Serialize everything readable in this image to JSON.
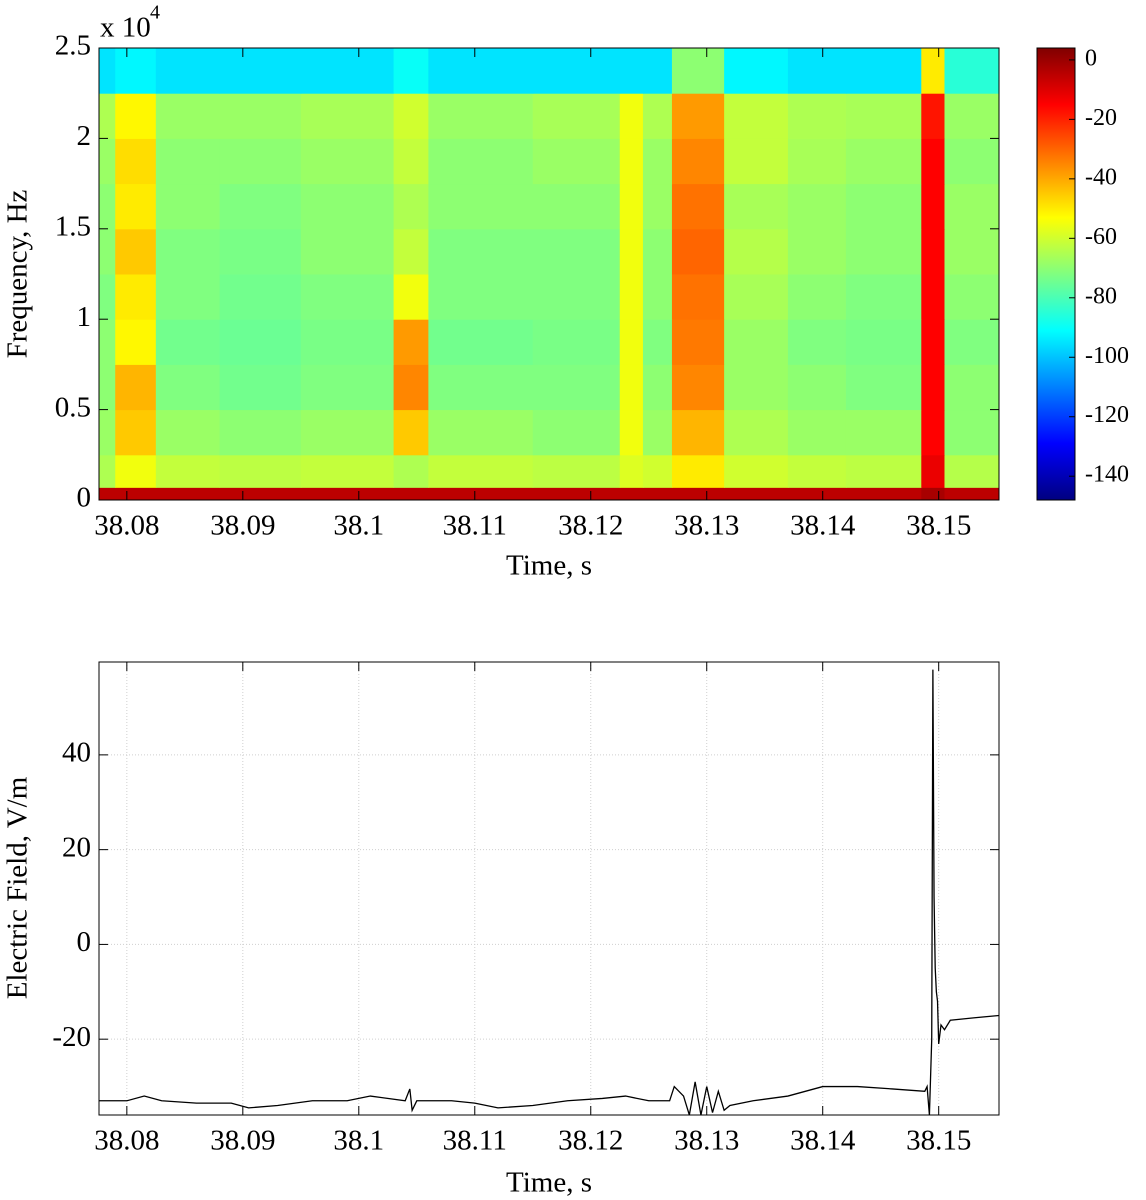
{
  "chart_data": [
    {
      "type": "spectrogram",
      "xlabel": "Time, s",
      "ylabel": "Frequency, Hz",
      "y_multiplier": {
        "base": "x 10",
        "exponent": "4"
      },
      "xbins": [
        38.0776,
        38.079,
        38.0825,
        38.088,
        38.095,
        38.103,
        38.106,
        38.115,
        38.1225,
        38.1245,
        38.127,
        38.1315,
        38.137,
        38.142,
        38.1485,
        38.1505,
        38.1552
      ],
      "ybins": [
        0,
        700,
        2500,
        5000,
        7500,
        10000,
        12500,
        15000,
        17500,
        20000,
        22500,
        25000
      ],
      "z": [
        [
          -5,
          -5,
          -5,
          -5,
          -5,
          -5,
          -5,
          -5,
          -5,
          -5,
          -5,
          -5,
          -5,
          -5,
          -2,
          -5
        ],
        [
          -65,
          -55,
          -62,
          -63,
          -62,
          -65,
          -62,
          -63,
          -58,
          -60,
          -50,
          -60,
          -62,
          -63,
          -12,
          -64
        ],
        [
          -68,
          -45,
          -68,
          -70,
          -68,
          -45,
          -68,
          -70,
          -55,
          -68,
          -42,
          -65,
          -68,
          -68,
          -15,
          -70
        ],
        [
          -70,
          -42,
          -72,
          -74,
          -72,
          -35,
          -72,
          -72,
          -55,
          -70,
          -35,
          -68,
          -70,
          -72,
          -15,
          -70
        ],
        [
          -70,
          -52,
          -74,
          -75,
          -73,
          -38,
          -74,
          -73,
          -55,
          -72,
          -33,
          -68,
          -72,
          -73,
          -15,
          -72
        ],
        [
          -72,
          -50,
          -72,
          -74,
          -72,
          -55,
          -72,
          -72,
          -55,
          -70,
          -32,
          -66,
          -70,
          -72,
          -15,
          -70
        ],
        [
          -70,
          -45,
          -72,
          -73,
          -70,
          -62,
          -72,
          -72,
          -55,
          -70,
          -30,
          -64,
          -68,
          -70,
          -15,
          -68
        ],
        [
          -70,
          -50,
          -70,
          -72,
          -70,
          -65,
          -70,
          -70,
          -55,
          -68,
          -32,
          -66,
          -68,
          -70,
          -15,
          -68
        ],
        [
          -68,
          -48,
          -70,
          -70,
          -68,
          -62,
          -70,
          -68,
          -55,
          -68,
          -35,
          -62,
          -66,
          -68,
          -15,
          -70
        ],
        [
          -65,
          -52,
          -68,
          -68,
          -66,
          -60,
          -68,
          -66,
          -55,
          -65,
          -38,
          -62,
          -65,
          -66,
          -18,
          -68
        ],
        [
          -95,
          -92,
          -95,
          -95,
          -95,
          -90,
          -95,
          -95,
          -95,
          -95,
          -70,
          -92,
          -95,
          -95,
          -50,
          -85
        ]
      ],
      "colormap": "jet",
      "clim": [
        -148,
        4
      ],
      "cticks": [
        0,
        -20,
        -40,
        -60,
        -80,
        -100,
        -120,
        -140
      ],
      "xlim": [
        38.0776,
        38.1552
      ],
      "xticks": [
        38.08,
        38.09,
        38.1,
        38.11,
        38.12,
        38.13,
        38.14,
        38.15
      ],
      "ylim": [
        0,
        25000
      ],
      "yticks": [
        {
          "value": 0,
          "label": "0"
        },
        {
          "value": 5000,
          "label": "0.5"
        },
        {
          "value": 10000,
          "label": "1"
        },
        {
          "value": 15000,
          "label": "1.5"
        },
        {
          "value": 20000,
          "label": "2"
        },
        {
          "value": 25000,
          "label": "2.5"
        }
      ],
      "grid": false
    },
    {
      "type": "line",
      "xlabel": "Time, s",
      "ylabel": "Electric Field, V/m",
      "color": "#000000",
      "x": [
        38.0776,
        38.08,
        38.0815,
        38.083,
        38.086,
        38.089,
        38.0905,
        38.093,
        38.096,
        38.099,
        38.101,
        38.104,
        38.1044,
        38.1046,
        38.105,
        38.108,
        38.11,
        38.112,
        38.115,
        38.118,
        38.121,
        38.123,
        38.125,
        38.1268,
        38.1272,
        38.128,
        38.1285,
        38.129,
        38.1295,
        38.13,
        38.1305,
        38.131,
        38.1315,
        38.132,
        38.134,
        38.137,
        38.14,
        38.143,
        38.146,
        38.1488,
        38.149,
        38.1492,
        38.1494,
        38.1495,
        38.1496,
        38.1497,
        38.1498,
        38.1499,
        38.15,
        38.1502,
        38.1505,
        38.151,
        38.153,
        38.1552
      ],
      "values": [
        -33,
        -33,
        -32,
        -33,
        -33.5,
        -33.5,
        -34.5,
        -34,
        -33,
        -33,
        -32,
        -33,
        -30.5,
        -35,
        -33,
        -33,
        -33.5,
        -34.5,
        -34,
        -33,
        -32.5,
        -32,
        -33,
        -33,
        -30,
        -32,
        -36,
        -29,
        -36,
        -30,
        -35.5,
        -31,
        -35,
        -34,
        -33,
        -32,
        -30,
        -30,
        -30.5,
        -31,
        -30,
        -36,
        -20,
        58,
        10,
        -5,
        -10,
        -12,
        -21,
        -17,
        -18,
        -16,
        -15.5,
        -15
      ],
      "xlim": [
        38.0776,
        38.1552
      ],
      "xticks": [
        38.08,
        38.09,
        38.1,
        38.11,
        38.12,
        38.13,
        38.14,
        38.15
      ],
      "ylim": [
        -36,
        59.6
      ],
      "yticks": [
        40,
        20,
        0,
        -20
      ],
      "grid": true
    }
  ]
}
